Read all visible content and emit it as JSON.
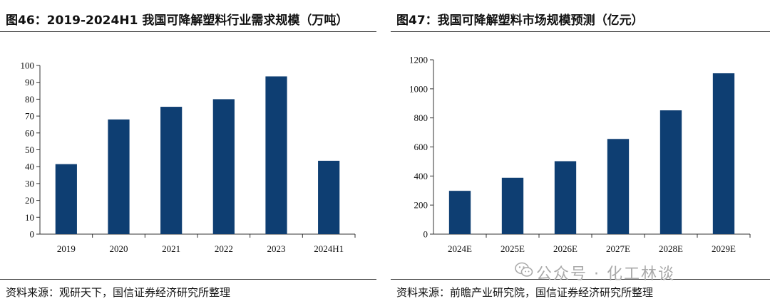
{
  "left": {
    "title": "图46：2019-2024H1 我国可降解塑料行业需求规模（万吨）",
    "source": "资料来源：观研天下，国信证券经济研究所整理"
  },
  "right": {
    "title": "图47：我国可降解塑料市场规模预测（亿元）",
    "source": "资料来源：前瞻产业研究院，国信证券经济研究所整理"
  },
  "watermark": {
    "text": "公众号 · 化工林谈",
    "icon": "wechat-icon"
  },
  "colors": {
    "bar": "#0e3e72",
    "axis": "#333333"
  },
  "chart_data": [
    {
      "type": "bar",
      "categories": [
        "2019",
        "2020",
        "2021",
        "2022",
        "2023",
        "2024H1"
      ],
      "values": [
        41.5,
        68,
        75.5,
        80,
        93.5,
        43.5
      ],
      "ylim": [
        0,
        100
      ],
      "yticks": [
        0,
        10,
        20,
        30,
        40,
        50,
        60,
        70,
        80,
        90,
        100
      ],
      "grid": false
    },
    {
      "type": "bar",
      "categories": [
        "2024E",
        "2025E",
        "2026E",
        "2027E",
        "2028E",
        "2029E"
      ],
      "values": [
        298,
        388,
        502,
        655,
        852,
        1107
      ],
      "ylim": [
        0,
        1200
      ],
      "yticks": [
        0,
        200,
        400,
        600,
        800,
        1000,
        1200
      ],
      "grid": false
    }
  ]
}
